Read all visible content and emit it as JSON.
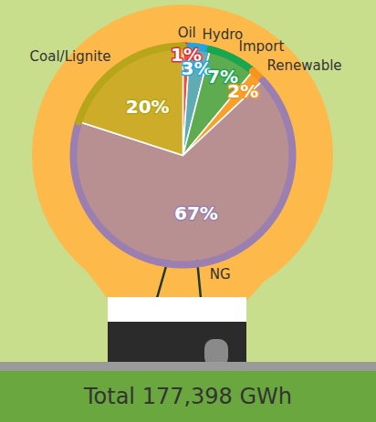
{
  "chart_data": {
    "type": "pie",
    "annotation": "Total 177,398 GWh",
    "categories": [
      "Oil",
      "Hydro",
      "Import",
      "Renewable",
      "NG",
      "Coal/Lignite"
    ],
    "values": [
      1,
      3,
      7,
      2,
      67,
      20
    ],
    "value_labels": [
      "1%",
      "3%",
      "7%",
      "2%",
      "67%",
      "20%"
    ],
    "colors": [
      "#e8262b",
      "#1ea6e0",
      "#1aa651",
      "#f7941d",
      "#9b7fb0",
      "#b7a61a"
    ],
    "data_labels": true,
    "tick_labels": false
  }
}
